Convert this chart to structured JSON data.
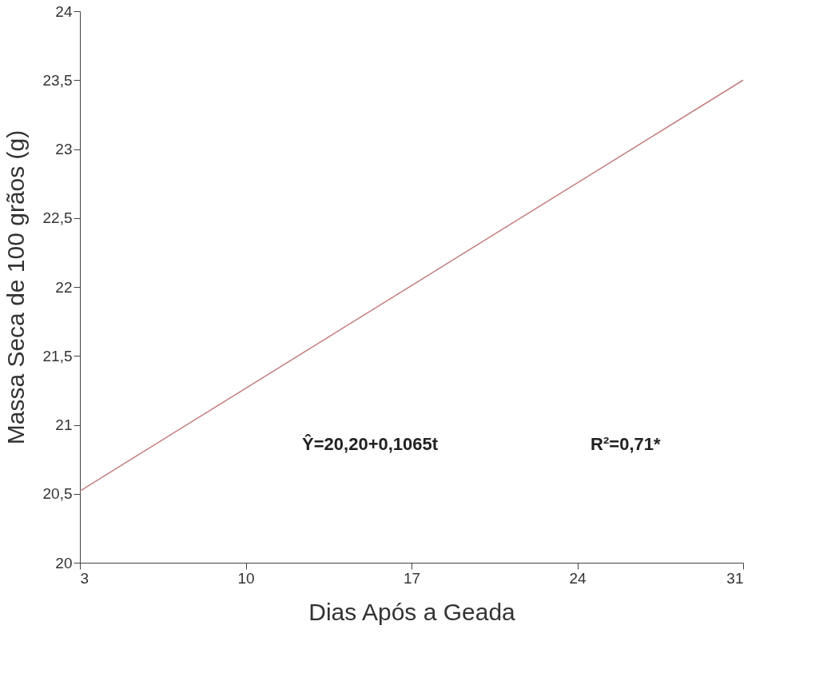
{
  "chart_data": {
    "type": "line",
    "xlabel": "Dias Após a Geada",
    "ylabel": "Massa Seca de 100 grãos (g)",
    "x": [
      3,
      31
    ],
    "series": [
      {
        "color": "#c47f7f",
        "values": [
          20.52,
          23.5
        ]
      }
    ],
    "xlim": [
      3,
      31
    ],
    "xticks": [
      3,
      10,
      17,
      24,
      31
    ],
    "ylim": [
      20,
      24
    ],
    "yticks": [
      20,
      {
        "value": 20.5,
        "label": "20,5"
      },
      21,
      {
        "value": 21.5,
        "label": "21,5"
      },
      22,
      {
        "value": 22.5,
        "label": "22,5"
      },
      23,
      {
        "value": 23.5,
        "label": "23,5"
      },
      24
    ],
    "annotations": [
      "Ŷ=20,20+0,1065t",
      "R²=0,71*"
    ],
    "grid": false,
    "marker": "none",
    "line_style": "solid"
  }
}
